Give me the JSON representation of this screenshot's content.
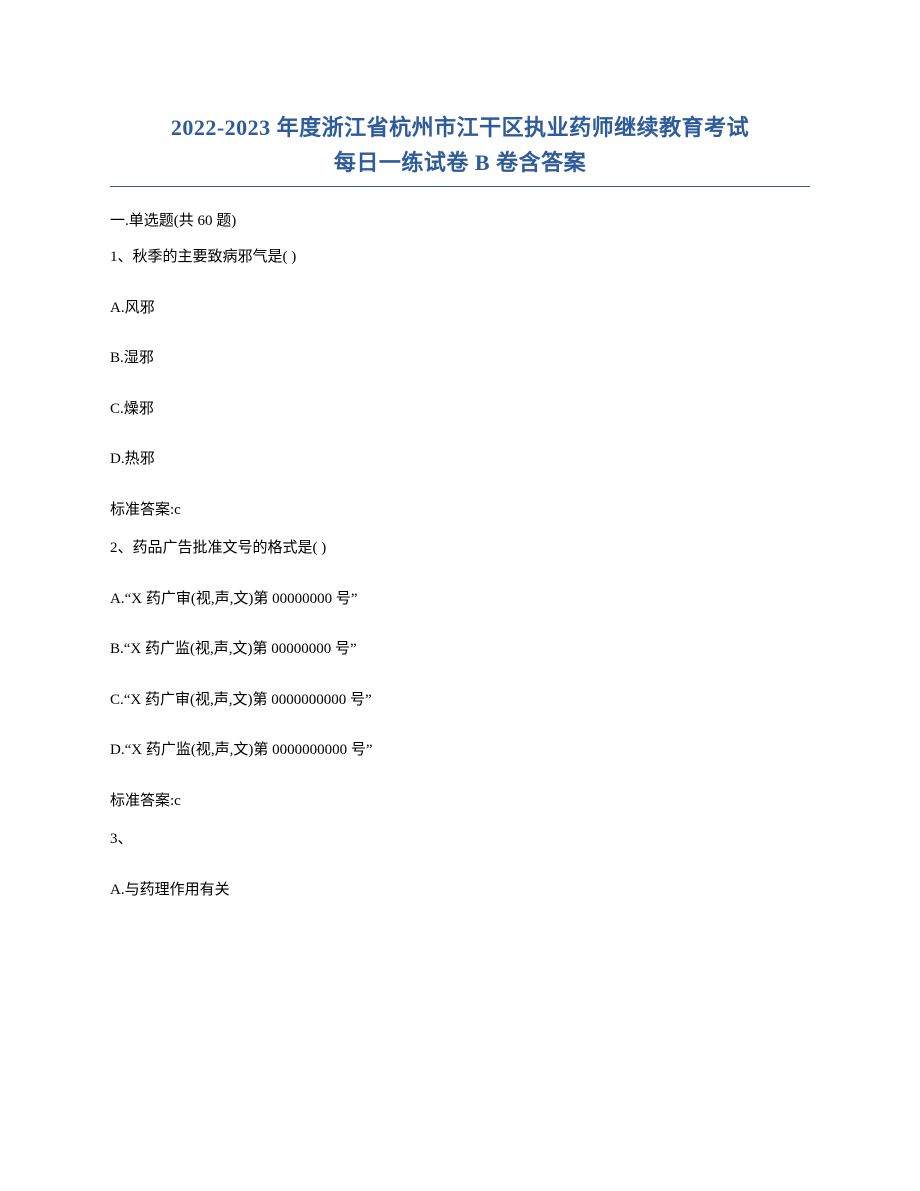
{
  "colors": {
    "title_color": "#2e5b9a",
    "text_color": "#000000",
    "bg_color": "#ffffff",
    "hr_color": "#2e5b9a"
  },
  "typography": {
    "title_fontsize_pt": 16,
    "body_fontsize_pt": 11,
    "title_weight": "bold",
    "font_family": "SimSun"
  },
  "title": {
    "line1": "2022-2023 年度浙江省杭州市江干区执业药师继续教育考试",
    "line2": "每日一练试卷 B 卷含答案"
  },
  "section": {
    "label": "一.单选题(共 60 题)"
  },
  "questions": [
    {
      "number": "1、",
      "stem": "秋季的主要致病邪气是( )",
      "options": [
        {
          "key": "A",
          "text": "A.风邪"
        },
        {
          "key": "B",
          "text": "B.湿邪"
        },
        {
          "key": "C",
          "text": "C.燥邪"
        },
        {
          "key": "D",
          "text": "D.热邪"
        }
      ],
      "answer_label": "标准答案:",
      "answer": "c"
    },
    {
      "number": "2、",
      "stem": "药品广告批准文号的格式是( )",
      "options": [
        {
          "key": "A",
          "text": "A.“X 药广审(视,声,文)第 00000000 号”"
        },
        {
          "key": "B",
          "text": "B.“X 药广监(视,声,文)第 00000000 号”"
        },
        {
          "key": "C",
          "text": "C.“X 药广审(视,声,文)第 0000000000 号”"
        },
        {
          "key": "D",
          "text": "D.“X 药广监(视,声,文)第 0000000000 号”"
        }
      ],
      "answer_label": "标准答案:",
      "answer": "c"
    },
    {
      "number": "3、",
      "stem": "",
      "options": [
        {
          "key": "A",
          "text": "A.与药理作用有关"
        }
      ],
      "answer_label": "",
      "answer": ""
    }
  ]
}
